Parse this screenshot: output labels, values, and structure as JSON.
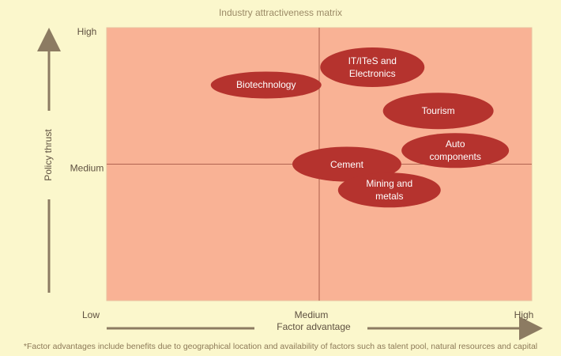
{
  "chart_data": {
    "type": "scatter",
    "title": "Industry attractiveness matrix",
    "x_label": "Factor advantage",
    "y_label": "Policy thrust",
    "footnote": "*Factor advantages include benefits due to geographical location and availability of factors such as talent pool, natural resources and capital",
    "point_labels": [
      "Biotechnology",
      "IT/ITeS and\nElectronics",
      "Tourism",
      "Auto\ncomponents",
      "Cement",
      "Mining and\nmetals"
    ],
    "x": [
      0.75,
      1.25,
      1.56,
      1.64,
      1.13,
      1.33
    ],
    "values": [
      1.58,
      1.71,
      1.39,
      1.1,
      1.0,
      0.81
    ],
    "color": "#b5332e",
    "xlim": [
      0,
      2
    ],
    "ylim": [
      0,
      2
    ],
    "xticks": [
      {
        "value": 0,
        "label": "Low"
      },
      {
        "value": 1,
        "label": "Medium"
      },
      {
        "value": 2,
        "label": "High"
      }
    ],
    "yticks": [
      {
        "value": 1,
        "label": "Medium"
      },
      {
        "value": 2,
        "label": "High"
      }
    ],
    "grid": true
  }
}
